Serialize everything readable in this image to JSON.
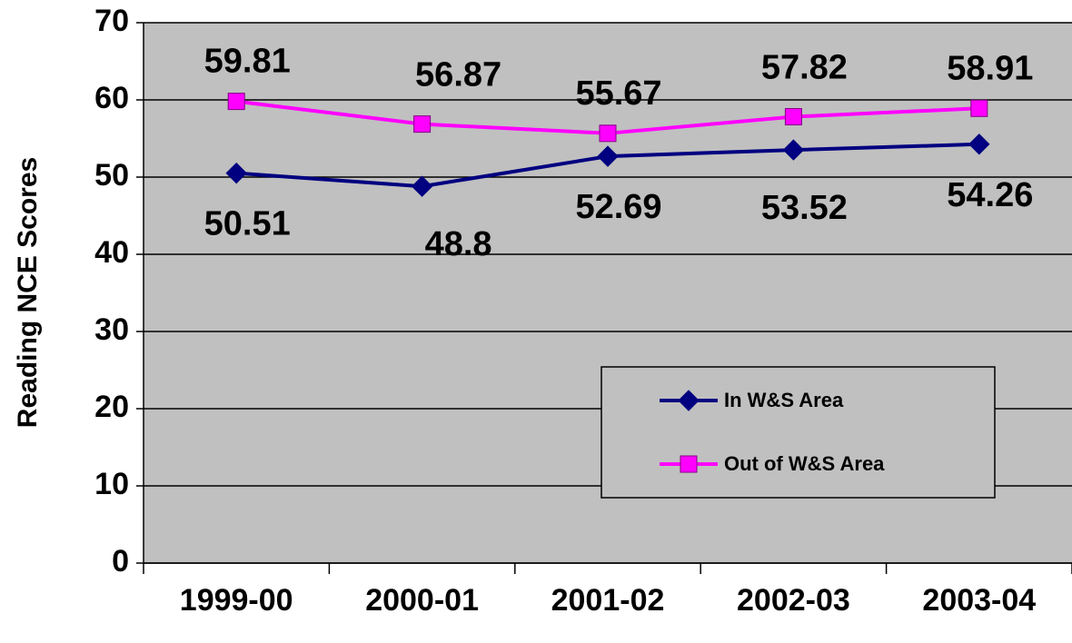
{
  "chart_data": {
    "type": "line",
    "y_label": "Reading NCE Scores",
    "categories": [
      "1999-00",
      "2000-01",
      "2001-02",
      "2002-03",
      "2003-04"
    ],
    "series": [
      {
        "name": "In W&S Area",
        "color": "#000080",
        "marker": "diamond",
        "values": [
          50.51,
          48.8,
          52.69,
          53.52,
          54.26
        ]
      },
      {
        "name": "Out of W&S Area",
        "color": "#ff00ff",
        "marker": "square",
        "values": [
          59.81,
          56.87,
          55.67,
          57.82,
          58.91
        ]
      }
    ],
    "ylim": [
      0,
      70
    ],
    "yticks": [
      0,
      10,
      20,
      30,
      40,
      50,
      60,
      70
    ],
    "grid": true
  }
}
